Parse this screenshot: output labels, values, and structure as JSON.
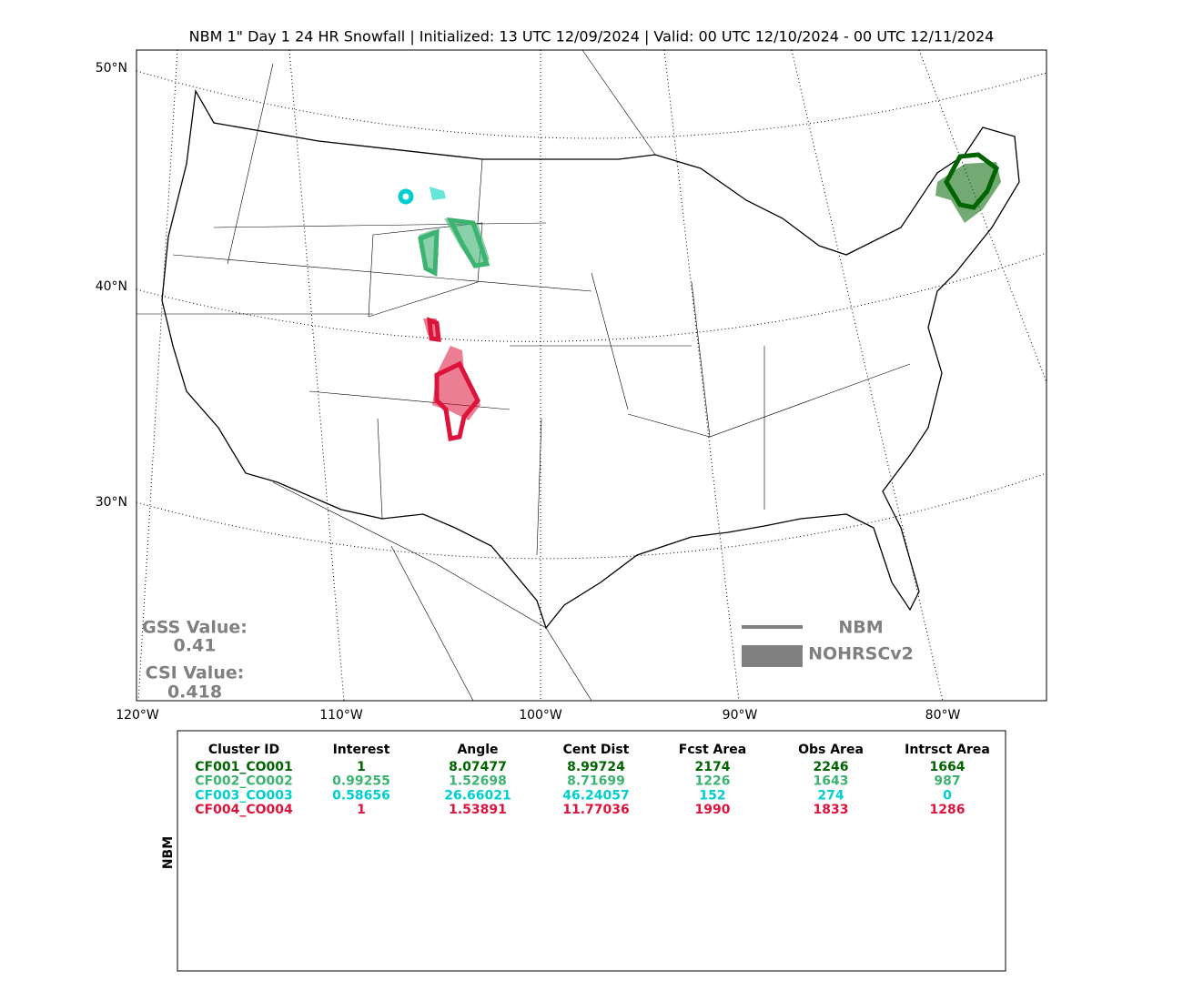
{
  "title": "NBM 1\" Day 1 24 HR Snowfall | Initialized: 13 UTC 12/09/2024 | Valid: 00 UTC 12/10/2024 - 00 UTC 12/11/2024",
  "map": {
    "lat_labels": [
      "50°N",
      "40°N",
      "30°N"
    ],
    "lon_labels": [
      "120°W",
      "110°W",
      "100°W",
      "90°W",
      "80°W"
    ]
  },
  "scores": {
    "gss_label": "GSS Value:",
    "gss": "0.41",
    "csi_label": "CSI Value:",
    "csi": "0.418"
  },
  "legend": {
    "items": [
      "NBM",
      "NOHRSCv2"
    ]
  },
  "table": {
    "side_label": "NBM",
    "columns": [
      "Cluster ID",
      "Interest",
      "Angle",
      "Cent Dist",
      "Fcst Area",
      "Obs Area",
      "Intrsct Area"
    ],
    "rows": [
      {
        "color": "#006400",
        "cells": [
          "CF001_CO001",
          "1",
          "8.07477",
          "8.99724",
          "2174",
          "2246",
          "1664"
        ]
      },
      {
        "color": "#3cb371",
        "cells": [
          "CF002_CO002",
          "0.99255",
          "1.52698",
          "8.71699",
          "1226",
          "1643",
          "987"
        ]
      },
      {
        "color": "#00ced1",
        "cells": [
          "CF003_CO003",
          "0.58656",
          "26.66021",
          "46.24057",
          "152",
          "274",
          "0"
        ]
      },
      {
        "color": "#dc143c",
        "cells": [
          "CF004_CO004",
          "1",
          "1.53891",
          "11.77036",
          "1990",
          "1833",
          "1286"
        ]
      }
    ]
  }
}
